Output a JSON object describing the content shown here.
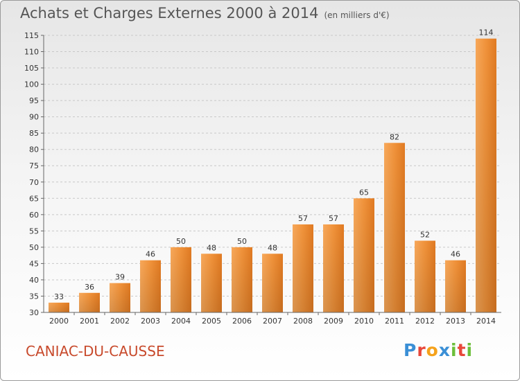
{
  "chart_data": {
    "type": "bar",
    "title": "Achats et Charges Externes 2000 à 2014",
    "subtitle": "(en milliers d'€)",
    "xlabel": "",
    "ylabel": "",
    "categories": [
      "2000",
      "2001",
      "2002",
      "2003",
      "2004",
      "2005",
      "2006",
      "2007",
      "2008",
      "2009",
      "2010",
      "2011",
      "2012",
      "2013",
      "2014"
    ],
    "values": [
      33,
      36,
      39,
      46,
      50,
      48,
      50,
      48,
      57,
      57,
      65,
      82,
      52,
      46,
      114
    ],
    "ylim": [
      30,
      115
    ],
    "yticks": [
      30,
      35,
      40,
      45,
      50,
      55,
      60,
      65,
      70,
      75,
      80,
      85,
      90,
      95,
      100,
      105,
      110,
      115
    ],
    "grid": true,
    "data_labels": true,
    "bar_color": "#f0923a"
  },
  "footer": {
    "place": "CANIAC-DU-CAUSSE",
    "logo_letters": [
      {
        "ch": "P",
        "color": "#3a8fd6"
      },
      {
        "ch": "r",
        "color": "#e8473a"
      },
      {
        "ch": "o",
        "color": "#f5a21b"
      },
      {
        "ch": "x",
        "color": "#3a8fd6"
      },
      {
        "ch": "i",
        "color": "#6cbf3a"
      },
      {
        "ch": "t",
        "color": "#e8473a"
      },
      {
        "ch": "i",
        "color": "#6cbf3a"
      }
    ]
  }
}
